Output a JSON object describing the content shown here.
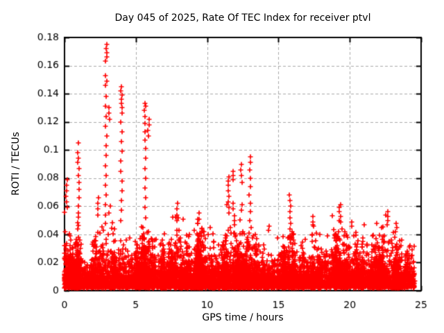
{
  "chart_data": {
    "type": "scatter",
    "title": "Day 045 of 2025, Rate Of TEC Index for receiver ptvl",
    "xlabel": "GPS time / hours",
    "ylabel": "ROTI / TECUs",
    "xlim": [
      0,
      25
    ],
    "ylim": [
      0,
      0.18
    ],
    "xticks": [
      0,
      5,
      10,
      15,
      20,
      25
    ],
    "yticks": [
      0,
      0.02,
      0.04,
      0.06,
      0.08,
      0.1,
      0.12,
      0.14,
      0.16,
      0.18
    ],
    "grid": {
      "show": true,
      "style": "dashed",
      "color": "#a9a9a9"
    },
    "legend": "none",
    "background": "#ffffff",
    "axis_color": "#000000",
    "series": [
      {
        "name": "ROTI",
        "marker": "plus",
        "color": "#ff0000",
        "size": 7
      }
    ],
    "x_data_range": [
      0,
      24.55
    ],
    "dense_band": {
      "description": "continuous noise band of 30s ROTI samples; solid below ~0.02 TECU, streaky up to local envelope",
      "count": 9000,
      "floor": 0.002,
      "mean": 0.0075,
      "seed": 45,
      "envelope": [
        [
          0,
          0.058
        ],
        [
          0.3,
          0.045
        ],
        [
          0.7,
          0.035
        ],
        [
          1.0,
          0.05
        ],
        [
          1.5,
          0.03
        ],
        [
          2.0,
          0.036
        ],
        [
          2.5,
          0.05
        ],
        [
          3.0,
          0.055
        ],
        [
          3.5,
          0.045
        ],
        [
          4.0,
          0.05
        ],
        [
          4.5,
          0.045
        ],
        [
          5.0,
          0.04
        ],
        [
          5.6,
          0.05
        ],
        [
          6.0,
          0.045
        ],
        [
          6.5,
          0.035
        ],
        [
          7.0,
          0.042
        ],
        [
          7.9,
          0.06
        ],
        [
          8.4,
          0.05
        ],
        [
          9.0,
          0.042
        ],
        [
          9.4,
          0.055
        ],
        [
          10.0,
          0.045
        ],
        [
          10.5,
          0.038
        ],
        [
          11.0,
          0.045
        ],
        [
          11.5,
          0.058
        ],
        [
          12.0,
          0.05
        ],
        [
          12.5,
          0.044
        ],
        [
          13.0,
          0.052
        ],
        [
          13.5,
          0.04
        ],
        [
          14.0,
          0.034
        ],
        [
          14.6,
          0.04
        ],
        [
          15.2,
          0.036
        ],
        [
          15.8,
          0.05
        ],
        [
          16.3,
          0.04
        ],
        [
          17.0,
          0.042
        ],
        [
          17.5,
          0.05
        ],
        [
          18.0,
          0.045
        ],
        [
          18.6,
          0.05
        ],
        [
          19.3,
          0.056
        ],
        [
          20.0,
          0.05
        ],
        [
          20.6,
          0.04
        ],
        [
          21.2,
          0.044
        ],
        [
          22.0,
          0.05
        ],
        [
          22.7,
          0.052
        ],
        [
          23.3,
          0.046
        ],
        [
          24.0,
          0.048
        ],
        [
          24.55,
          0.042
        ]
      ]
    },
    "spikes": [
      {
        "x": 0.15,
        "ys": [
          0.079,
          0.075,
          0.071,
          0.067,
          0.063,
          0.059
        ]
      },
      {
        "x": 0.97,
        "ys": [
          0.105,
          0.098,
          0.094,
          0.091,
          0.087,
          0.082,
          0.077,
          0.072,
          0.066,
          0.06,
          0.055
        ]
      },
      {
        "x": 2.35,
        "ys": [
          0.066,
          0.062,
          0.058,
          0.054
        ]
      },
      {
        "x": 2.9,
        "ys": [
          0.175,
          0.172,
          0.169,
          0.166,
          0.163,
          0.153,
          0.149,
          0.146,
          0.138,
          0.131,
          0.124,
          0.117,
          0.11,
          0.103,
          0.096,
          0.089,
          0.082,
          0.075,
          0.068,
          0.061,
          0.054,
          0.048
        ]
      },
      {
        "x": 3.15,
        "ys": [
          0.13,
          0.126,
          0.122,
          0.06,
          0.055
        ]
      },
      {
        "x": 4.0,
        "ys": [
          0.145,
          0.142,
          0.139,
          0.136,
          0.133,
          0.13,
          0.126,
          0.12,
          0.113,
          0.106,
          0.099,
          0.092,
          0.085,
          0.078,
          0.071,
          0.064,
          0.057,
          0.05
        ]
      },
      {
        "x": 5.65,
        "ys": [
          0.133,
          0.131,
          0.128,
          0.124,
          0.119,
          0.113,
          0.107,
          0.101,
          0.094,
          0.087,
          0.08,
          0.073,
          0.066,
          0.059,
          0.052
        ]
      },
      {
        "x": 5.9,
        "ys": [
          0.122,
          0.118,
          0.114,
          0.11
        ]
      },
      {
        "x": 7.9,
        "ys": [
          0.062,
          0.058,
          0.054,
          0.05
        ]
      },
      {
        "x": 9.4,
        "ys": [
          0.055,
          0.051,
          0.048
        ]
      },
      {
        "x": 11.5,
        "ys": [
          0.081,
          0.078,
          0.075,
          0.071,
          0.067,
          0.063,
          0.059,
          0.055
        ]
      },
      {
        "x": 11.85,
        "ys": [
          0.085,
          0.082,
          0.079,
          0.062,
          0.058
        ]
      },
      {
        "x": 12.4,
        "ys": [
          0.09,
          0.086,
          0.082,
          0.077,
          0.061,
          0.057
        ]
      },
      {
        "x": 13.0,
        "ys": [
          0.095,
          0.091,
          0.086,
          0.08,
          0.074,
          0.068,
          0.062,
          0.056,
          0.05
        ]
      },
      {
        "x": 14.35,
        "ys": [
          0.046,
          0.043
        ]
      },
      {
        "x": 15.8,
        "ys": [
          0.068,
          0.064,
          0.06,
          0.056,
          0.052,
          0.048
        ]
      },
      {
        "x": 17.4,
        "ys": [
          0.053,
          0.049,
          0.046
        ]
      },
      {
        "x": 19.3,
        "ys": [
          0.061,
          0.059,
          0.056,
          0.053,
          0.05
        ]
      },
      {
        "x": 20.15,
        "ys": [
          0.049,
          0.046
        ]
      },
      {
        "x": 21.0,
        "ys": [
          0.047
        ]
      },
      {
        "x": 22.65,
        "ys": [
          0.056,
          0.053,
          0.05,
          0.047
        ]
      },
      {
        "x": 23.3,
        "ys": [
          0.048,
          0.045
        ]
      }
    ]
  }
}
